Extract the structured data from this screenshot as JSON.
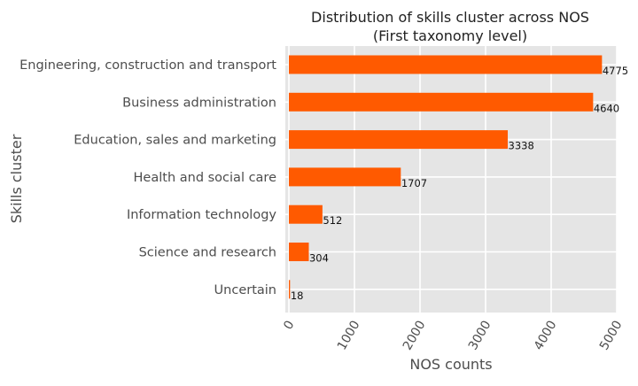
{
  "chart_data": {
    "type": "bar",
    "orientation": "horizontal",
    "title": "Distribution of skills cluster across NOS",
    "subtitle": "(First taxonomy level)",
    "xlabel": "NOS counts",
    "ylabel": "Skills cluster",
    "xlim": [
      0,
      5000
    ],
    "xticks": [
      "0",
      "1000",
      "2000",
      "3000",
      "4000",
      "5000"
    ],
    "grid": true,
    "bar_color": "#ff5a00",
    "background_color": "#e5e5e5",
    "categories": [
      "Engineering, construction and transport",
      "Business administration",
      "Education, sales and marketing",
      "Health and social care",
      "Information technology",
      "Science and research",
      "Uncertain"
    ],
    "values": [
      4775,
      4640,
      3338,
      1707,
      512,
      304,
      18
    ],
    "data_labels": [
      "4775",
      "4640",
      "3338",
      "1707",
      "512",
      "304",
      "18"
    ]
  }
}
